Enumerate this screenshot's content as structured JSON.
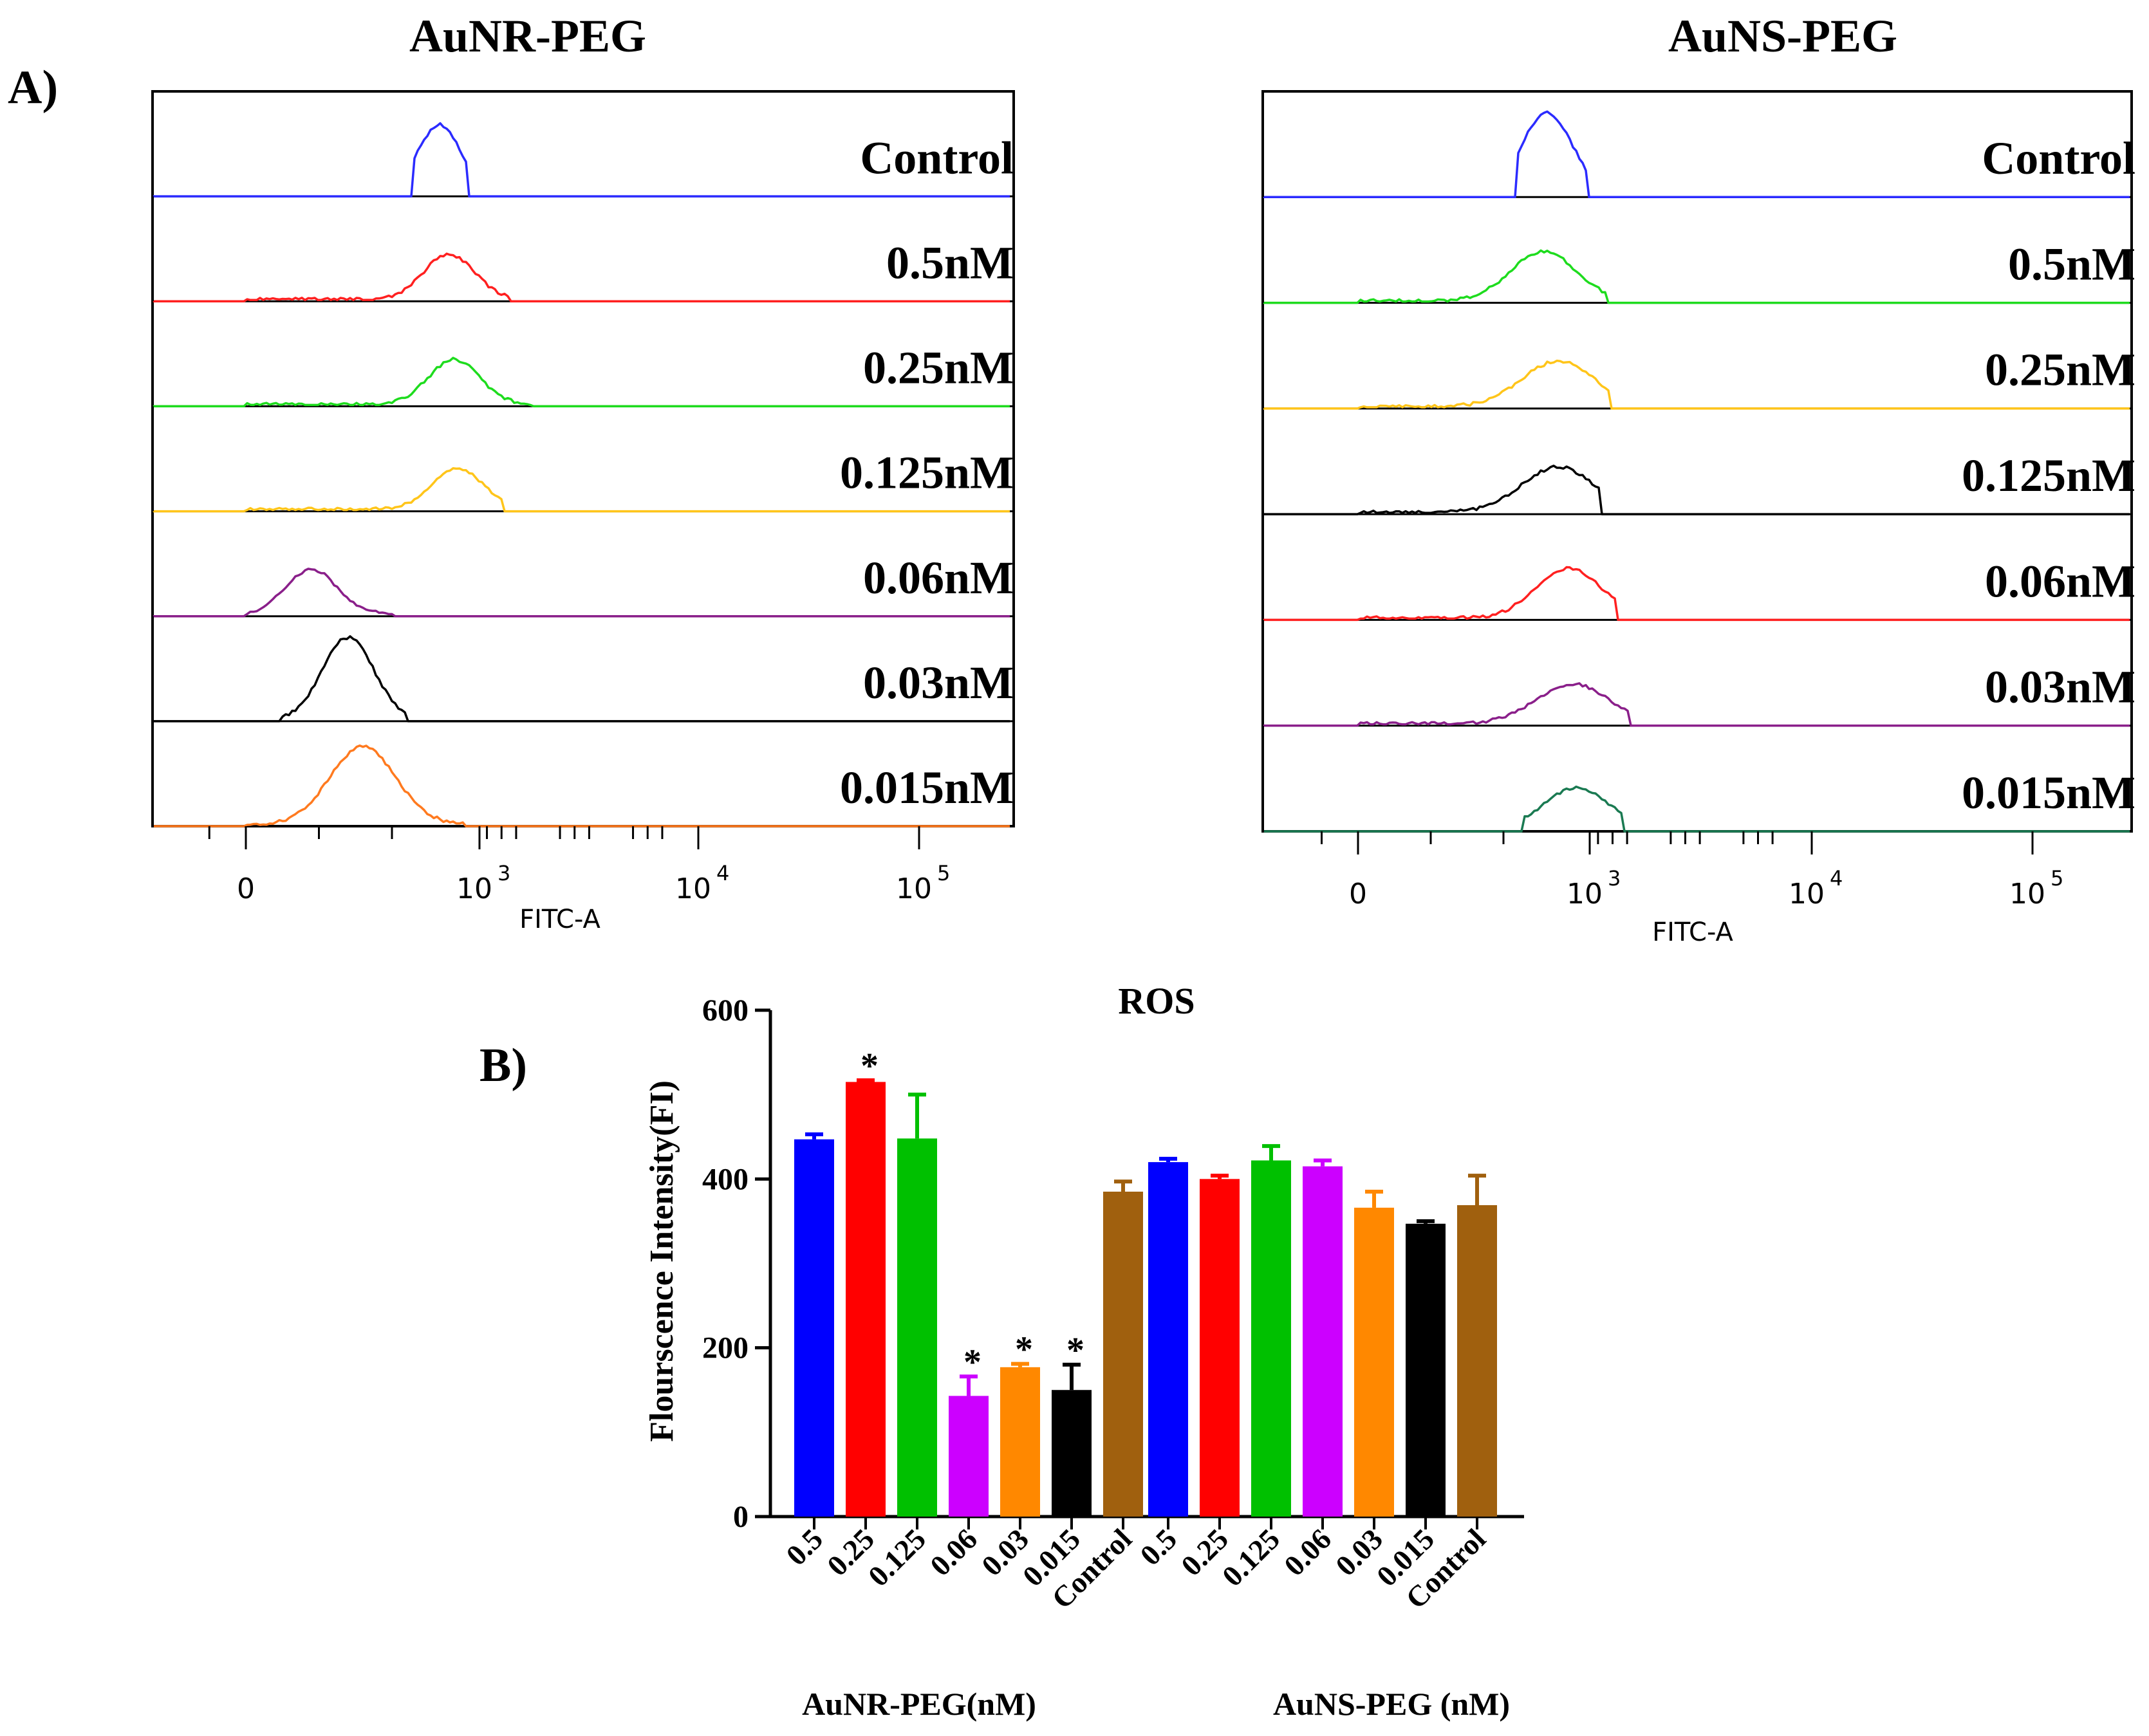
{
  "panel_a": {
    "label": "A)",
    "left": {
      "title": "AuNR-PEG",
      "xlabel": "FITC-A",
      "xticks": [
        "0",
        "10",
        "10",
        "10"
      ],
      "xtick_exponents": [
        "",
        "3",
        "4",
        "5"
      ],
      "tracks": [
        {
          "label": "Control",
          "color": "#2b2bff",
          "peak_log": 2.65,
          "spread": 0.3,
          "height": 0.85,
          "low_log": 2.3,
          "high_log": 3.05
        },
        {
          "label": "0.5nM",
          "color": "#ff2020",
          "peak_log": 2.78,
          "spread": 0.35,
          "height": 0.55,
          "low_log": 0.0,
          "high_log": 3.6
        },
        {
          "label": "0.25nM",
          "color": "#1edc1e",
          "peak_log": 2.85,
          "spread": 0.35,
          "height": 0.55,
          "low_log": 0.0,
          "high_log": 3.9
        },
        {
          "label": "0.125nM",
          "color": "#ffc51a",
          "peak_log": 2.9,
          "spread": 0.35,
          "height": 0.5,
          "low_log": 0.0,
          "high_log": 3.5
        },
        {
          "label": "0.06nM",
          "color": "#8a1f8a",
          "peak_log": 0.9,
          "spread": 0.35,
          "height": 0.55,
          "low_log": 0.0,
          "high_log": 2.0
        },
        {
          "label": "0.03nM",
          "color": "#000000",
          "peak_log": 1.4,
          "spread": 0.35,
          "height": 1.0,
          "low_log": 0.5,
          "high_log": 2.2
        },
        {
          "label": "0.015nM",
          "color": "#ff7a1f",
          "peak_log": 1.6,
          "spread": 0.45,
          "height": 0.95,
          "low_log": 0.0,
          "high_log": 3.0
        }
      ]
    },
    "right": {
      "title": "AuNS-PEG",
      "xlabel": "FITC-A",
      "xticks": [
        "0",
        "10",
        "10",
        "10"
      ],
      "xtick_exponents": [
        "",
        "3",
        "4",
        "5"
      ],
      "tracks": [
        {
          "label": "Control",
          "color": "#2b2bff",
          "peak_log": 2.6,
          "spread": 0.35,
          "height": 1.0,
          "low_log": 2.2,
          "high_log": 3.15
        },
        {
          "label": "0.5nM",
          "color": "#1edc1e",
          "peak_log": 2.55,
          "spread": 0.45,
          "height": 0.6,
          "low_log": 0.0,
          "high_log": 3.4
        },
        {
          "label": "0.25nM",
          "color": "#ffc51a",
          "peak_log": 2.75,
          "spread": 0.5,
          "height": 0.55,
          "low_log": 0.0,
          "high_log": 3.45
        },
        {
          "label": "0.125nM",
          "color": "#000000",
          "peak_log": 2.75,
          "spread": 0.5,
          "height": 0.55,
          "low_log": 0.0,
          "high_log": 3.35
        },
        {
          "label": "0.06nM",
          "color": "#ff2020",
          "peak_log": 2.9,
          "spread": 0.45,
          "height": 0.6,
          "low_log": 0.0,
          "high_log": 3.55
        },
        {
          "label": "0.03nM",
          "color": "#8a1f8a",
          "peak_log": 2.95,
          "spread": 0.5,
          "height": 0.48,
          "low_log": 0.0,
          "high_log": 3.75
        },
        {
          "label": "0.015nM",
          "color": "#1a7a52",
          "peak_log": 3.0,
          "spread": 0.45,
          "height": 0.5,
          "low_log": 2.25,
          "high_log": 3.65
        }
      ]
    }
  },
  "chart_data": {
    "type": "bar",
    "panel_label": "B)",
    "title": "ROS",
    "ylabel": "Flourscence Intensity(FI)",
    "ylim": [
      0,
      600
    ],
    "yticks": [
      0,
      200,
      400,
      600
    ],
    "groups": [
      {
        "name": "AuNR-PEG(nM)",
        "categories": [
          "0.5",
          "0.25",
          "0.125",
          "0.06",
          "0.03",
          "0.015",
          "Control"
        ],
        "values": [
          447,
          515,
          448,
          143,
          177,
          150,
          385
        ],
        "errors": [
          6,
          2,
          52,
          23,
          4,
          30,
          12
        ],
        "significant": [
          false,
          true,
          false,
          true,
          true,
          true,
          false
        ]
      },
      {
        "name": "AuNS-PEG (nM)",
        "categories": [
          "0.5",
          "0.25",
          "0.125",
          "0.06",
          "0.03",
          "0.015",
          "Control"
        ],
        "values": [
          420,
          400,
          422,
          415,
          366,
          347,
          369
        ],
        "errors": [
          4,
          4,
          17,
          7,
          19,
          3,
          35
        ],
        "significant": [
          false,
          false,
          false,
          false,
          false,
          false,
          false
        ]
      }
    ],
    "bar_colors": [
      "#0000ff",
      "#ff0000",
      "#00c000",
      "#cc00ff",
      "#ff8800",
      "#000000",
      "#a0600e"
    ],
    "significance_marker": "*"
  }
}
